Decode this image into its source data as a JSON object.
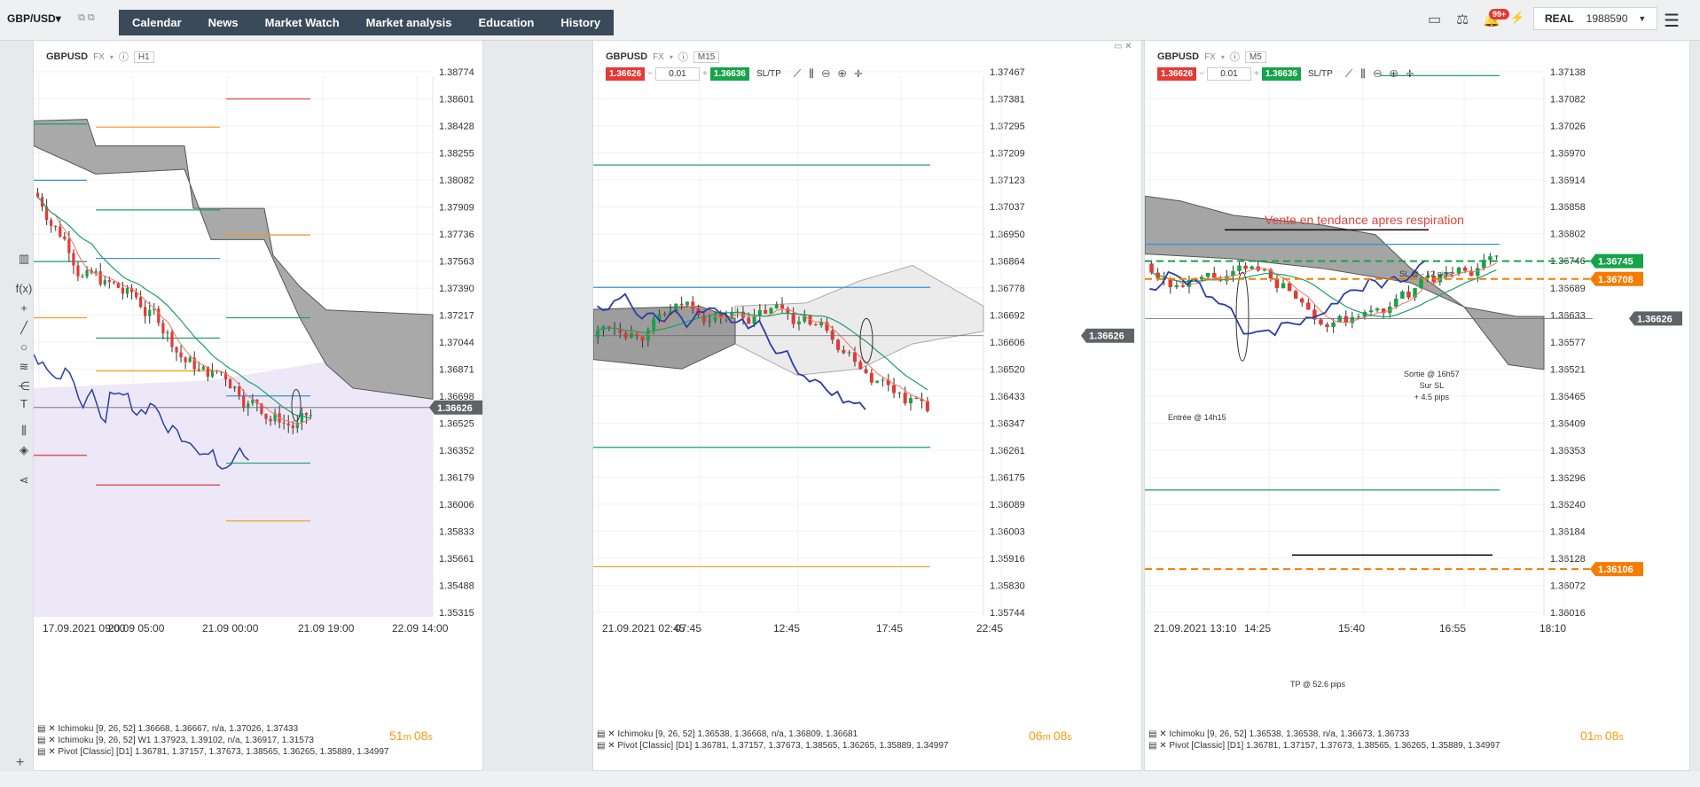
{
  "topbar": {
    "symbol": "GBP/USD",
    "nav": [
      "Calendar",
      "News",
      "Market Watch",
      "Market analysis",
      "Education",
      "History"
    ],
    "notifications_badge": "99+",
    "account_type": "REAL",
    "account_number": "1988590"
  },
  "colors": {
    "up": "#16a34a",
    "down": "#e53935",
    "cloud": "#8e8e8e",
    "kijun": "#1aa06a",
    "tenkan": "#f07860",
    "chikou": "#2b3da8",
    "pivot_r": "#e53935",
    "pivot_s": "#f39c12",
    "pivot_pp": "#3a8fd8"
  },
  "panels": [
    {
      "symbol": "GBPUSD",
      "asset": "FX",
      "timeframe": "H1",
      "price_ticks": [
        "1.38774",
        "1.38601",
        "1.38428",
        "1.38255",
        "1.38082",
        "1.37909",
        "1.37736",
        "1.37563",
        "1.37390",
        "1.37217",
        "1.37044",
        "1.36871",
        "1.36698",
        "1.36525",
        "1.36352",
        "1.36179",
        "1.36006",
        "1.35833",
        "1.35661",
        "1.35488",
        "1.35315"
      ],
      "time_ticks": [
        "17.09.2021 09:00",
        "20.09 05:00",
        "21.09 00:00",
        "21.09 19:00",
        "22.09 14:00"
      ],
      "current_price": "1.36626",
      "legend": [
        "Ichimoku [9, 26, 52] 1.36668, 1.36667, n/a, 1.37026, 1.37433",
        "Ichimoku [9, 26, 52] W1 1.37923, 1.39102, n/a, 1.36917, 1.31573",
        "Pivot [Classic] [D1] 1.36781, 1.37157, 1.37673, 1.38565, 1.36265, 1.35889, 1.34997"
      ],
      "timer_min": "51",
      "timer_sec": "08"
    },
    {
      "symbol": "GBPUSD",
      "asset": "FX",
      "timeframe": "M15",
      "sell_price": "1.36626",
      "buy_price": "1.36636",
      "lot": "0.01",
      "sltp": "SL/TP",
      "price_ticks": [
        "1.37467",
        "1.37381",
        "1.37295",
        "1.37209",
        "1.37123",
        "1.37037",
        "1.36950",
        "1.36864",
        "1.36778",
        "1.36692",
        "1.36606",
        "1.36520",
        "1.36433",
        "1.36347",
        "1.36261",
        "1.36175",
        "1.36089",
        "1.36003",
        "1.35916",
        "1.35830",
        "1.35744"
      ],
      "time_ticks": [
        "21.09.2021 02:45",
        "07:45",
        "12:45",
        "17:45",
        "22:45"
      ],
      "current_price": "1.36626",
      "legend": [
        "Ichimoku [9, 26, 52] 1.36538, 1.36668, n/a, 1.36809, 1.36681",
        "Pivot [Classic] [D1] 1.36781, 1.37157, 1.37673, 1.38565, 1.36265, 1.35889, 1.34997"
      ],
      "timer_min": "06",
      "timer_sec": "08"
    },
    {
      "symbol": "GBPUSD",
      "asset": "FX",
      "timeframe": "M5",
      "sell_price": "1.36626",
      "buy_price": "1.36636",
      "lot": "0.01",
      "sltp": "SL/TP",
      "price_ticks": [
        "1.37138",
        "1.37082",
        "1.37026",
        "1.36970",
        "1.36914",
        "1.36858",
        "1.36802",
        "1.36746",
        "1.36689",
        "1.36633",
        "1.36577",
        "1.36521",
        "1.36465",
        "1.36409",
        "1.36353",
        "1.36296",
        "1.36240",
        "1.36184",
        "1.36128",
        "1.36072",
        "1.36016"
      ],
      "time_ticks": [
        "21.09.2021 13:10",
        "14:25",
        "15:40",
        "16:55",
        "18:10"
      ],
      "current_price": "1.36626",
      "sl_price": "1.36745",
      "entry_price": "1.36708",
      "tp_price": "1.36106",
      "annotations": {
        "title": "Vente en tendance apres respiration",
        "sl": "SL @ - 12 pips",
        "entry": "Entrée @ 14h15",
        "exit1": "Sortie @ 16h57",
        "exit2": "Sur SL",
        "exit3": "+ 4.5 pips",
        "tp": "TP @ 52.6 pips"
      },
      "legend": [
        "Ichimoku [9, 26, 52] 1.36538, 1.36538, n/a, 1.36673, 1.36733",
        "Pivot [Classic] [D1] 1.36781, 1.37157, 1.37673, 1.38565, 1.36265, 1.35889, 1.34997"
      ],
      "timer_min": "01",
      "timer_sec": "08"
    }
  ]
}
